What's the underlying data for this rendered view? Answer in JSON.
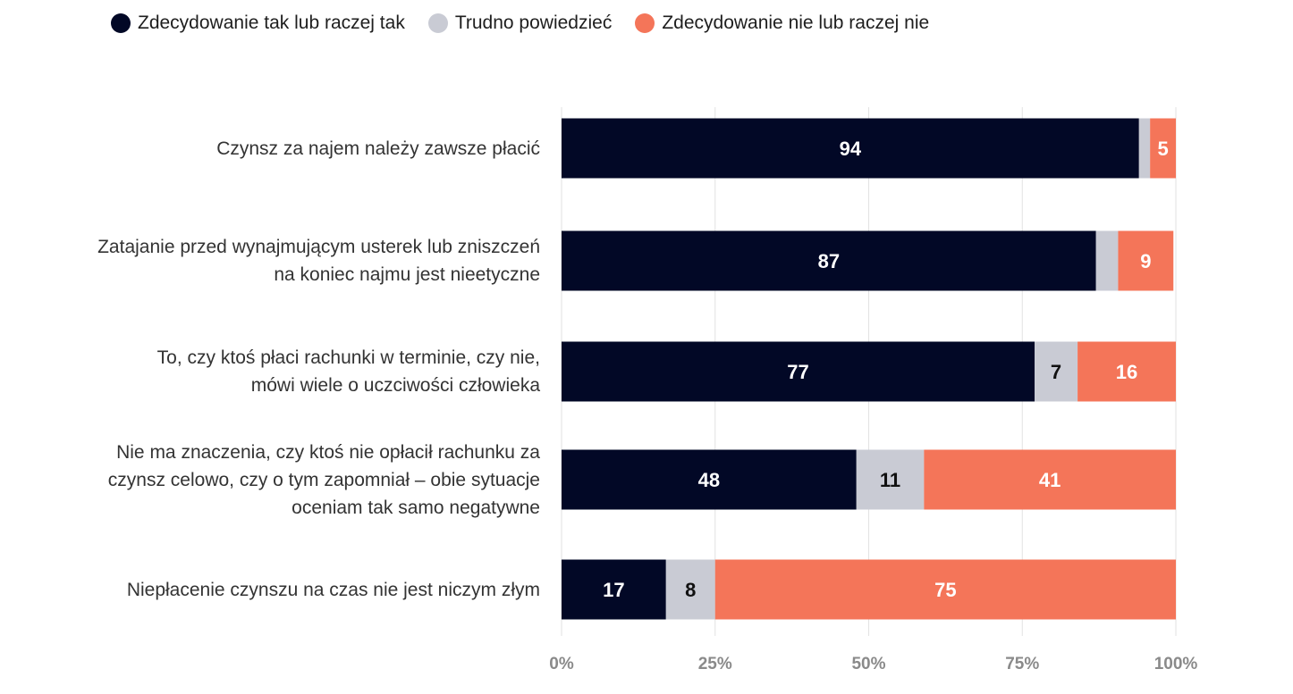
{
  "chart_data": {
    "type": "bar",
    "orientation": "horizontal",
    "stacked": true,
    "categories": [
      "Czynsz za najem należy zawsze płacić",
      "Zatajanie przed wynajmującym usterek lub zniszczeń\nna koniec najmu jest nieetyczne",
      "To, czy ktoś płaci rachunki w terminie, czy nie,\nmówi wiele o uczciwości człowieka",
      "Nie ma znaczenia, czy ktoś nie opłacił rachunku za\nczynsz celowo, czy o tym zapomniał – obie sytuacje\noceniam tak samo negatywne",
      "Niepłacenie czynszu na czas nie jest niczym złym"
    ],
    "series": [
      {
        "name": "Zdecydowanie tak lub raczej tak",
        "color": "#020826",
        "label_color": "#ffffff",
        "values": [
          94,
          87,
          77,
          48,
          17
        ],
        "labels": [
          "94",
          "87",
          "77",
          "48",
          "17"
        ]
      },
      {
        "name": "Trudno powiedzieć",
        "color": "#c9cbd4",
        "label_color": "#111111",
        "values": [
          1.8,
          3.6,
          7,
          11,
          8
        ],
        "labels": [
          "",
          "",
          "7",
          "11",
          "8"
        ]
      },
      {
        "name": "Zdecydowanie nie lub raczej nie",
        "color": "#f47559",
        "label_color": "#ffffff",
        "values": [
          5,
          9,
          16,
          41,
          75
        ],
        "labels": [
          "5",
          "9",
          "16",
          "41",
          "75"
        ]
      }
    ],
    "x_ticks": [
      "0%",
      "25%",
      "50%",
      "75%",
      "100%"
    ],
    "xlim": [
      0,
      100
    ],
    "grid": true,
    "legend_position": "top-left"
  }
}
